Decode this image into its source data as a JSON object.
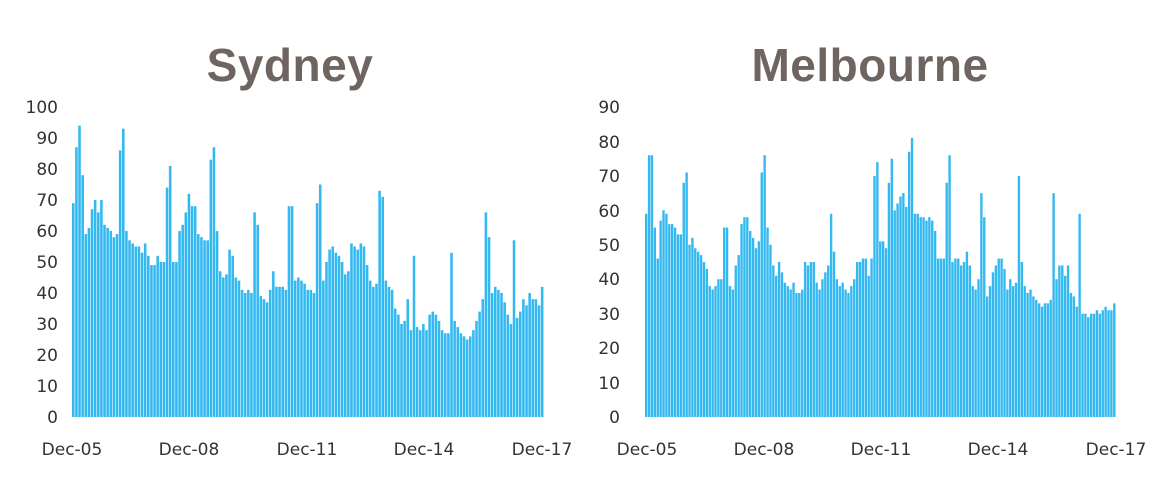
{
  "chart_data": [
    {
      "type": "bar",
      "title": "Sydney",
      "xlabel": "",
      "ylabel": "",
      "ylim": [
        0,
        100
      ],
      "yticks": [
        0,
        10,
        20,
        30,
        40,
        50,
        60,
        70,
        80,
        90,
        100
      ],
      "xticks": [
        "Dec-05",
        "Dec-08",
        "Dec-11",
        "Dec-14",
        "Dec-17"
      ],
      "grid": false,
      "legend": "none",
      "bar_color": "#33b8f0",
      "x_range": [
        "Dec-05",
        "Dec-17"
      ],
      "frequency": "monthly",
      "values": [
        69,
        87,
        94,
        78,
        59,
        61,
        67,
        70,
        66,
        70,
        62,
        61,
        60,
        58,
        59,
        86,
        93,
        60,
        57,
        56,
        55,
        55,
        53,
        56,
        52,
        49,
        49,
        52,
        50,
        50,
        74,
        81,
        50,
        50,
        60,
        62,
        66,
        72,
        68,
        68,
        59,
        58,
        57,
        57,
        83,
        87,
        60,
        47,
        45,
        46,
        54,
        52,
        45,
        44,
        41,
        40,
        41,
        40,
        66,
        62,
        39,
        38,
        37,
        41,
        47,
        42,
        42,
        42,
        41,
        68,
        68,
        44,
        45,
        44,
        43,
        41,
        41,
        40,
        69,
        75,
        44,
        50,
        54,
        55,
        53,
        52,
        50,
        46,
        47,
        56,
        55,
        54,
        56,
        55,
        49,
        44,
        42,
        43,
        73,
        71,
        44,
        42,
        41,
        35,
        33,
        30,
        31,
        38,
        28,
        52,
        29,
        28,
        30,
        28,
        33,
        34,
        33,
        31,
        28,
        27,
        27,
        53,
        31,
        29,
        27,
        26,
        25,
        26,
        28,
        31,
        34,
        38,
        66,
        58,
        40,
        42,
        41,
        40,
        37,
        33,
        30,
        57,
        32,
        34,
        38,
        36,
        40,
        38,
        38,
        36,
        42
      ],
      "peak_annotations": []
    },
    {
      "type": "bar",
      "title": "Melbourne",
      "xlabel": "",
      "ylabel": "",
      "ylim": [
        0,
        90
      ],
      "yticks": [
        0,
        10,
        20,
        30,
        40,
        50,
        60,
        70,
        80,
        90
      ],
      "xticks": [
        "Dec-05",
        "Dec-08",
        "Dec-11",
        "Dec-14",
        "Dec-17"
      ],
      "grid": false,
      "legend": "none",
      "bar_color": "#33b8f0",
      "x_range": [
        "Dec-05",
        "Dec-17"
      ],
      "frequency": "monthly",
      "values": [
        59,
        76,
        76,
        55,
        46,
        57,
        60,
        59,
        56,
        56,
        55,
        53,
        53,
        68,
        71,
        50,
        52,
        49,
        48,
        47,
        45,
        43,
        38,
        37,
        38,
        40,
        40,
        55,
        55,
        38,
        37,
        44,
        47,
        56,
        58,
        58,
        54,
        52,
        49,
        51,
        71,
        76,
        55,
        50,
        44,
        41,
        45,
        42,
        39,
        38,
        37,
        39,
        36,
        36,
        37,
        45,
        44,
        45,
        45,
        39,
        37,
        40,
        42,
        44,
        59,
        48,
        40,
        38,
        39,
        37,
        36,
        38,
        40,
        45,
        45,
        46,
        46,
        41,
        46,
        70,
        74,
        51,
        51,
        49,
        68,
        75,
        60,
        62,
        64,
        65,
        61,
        77,
        81,
        59,
        59,
        58,
        58,
        57,
        58,
        57,
        54,
        46,
        46,
        46,
        68,
        76,
        45,
        46,
        46,
        44,
        45,
        48,
        44,
        38,
        37,
        40,
        65,
        58,
        35,
        38,
        42,
        44,
        46,
        46,
        43,
        37,
        40,
        38,
        39,
        70,
        45,
        38,
        36,
        37,
        35,
        34,
        33,
        32,
        33,
        33,
        34,
        65,
        40,
        44,
        44,
        41,
        44,
        36,
        35,
        32,
        59,
        30,
        30,
        29,
        30,
        30,
        31,
        30,
        31,
        32,
        31,
        31,
        33
      ]
    }
  ]
}
